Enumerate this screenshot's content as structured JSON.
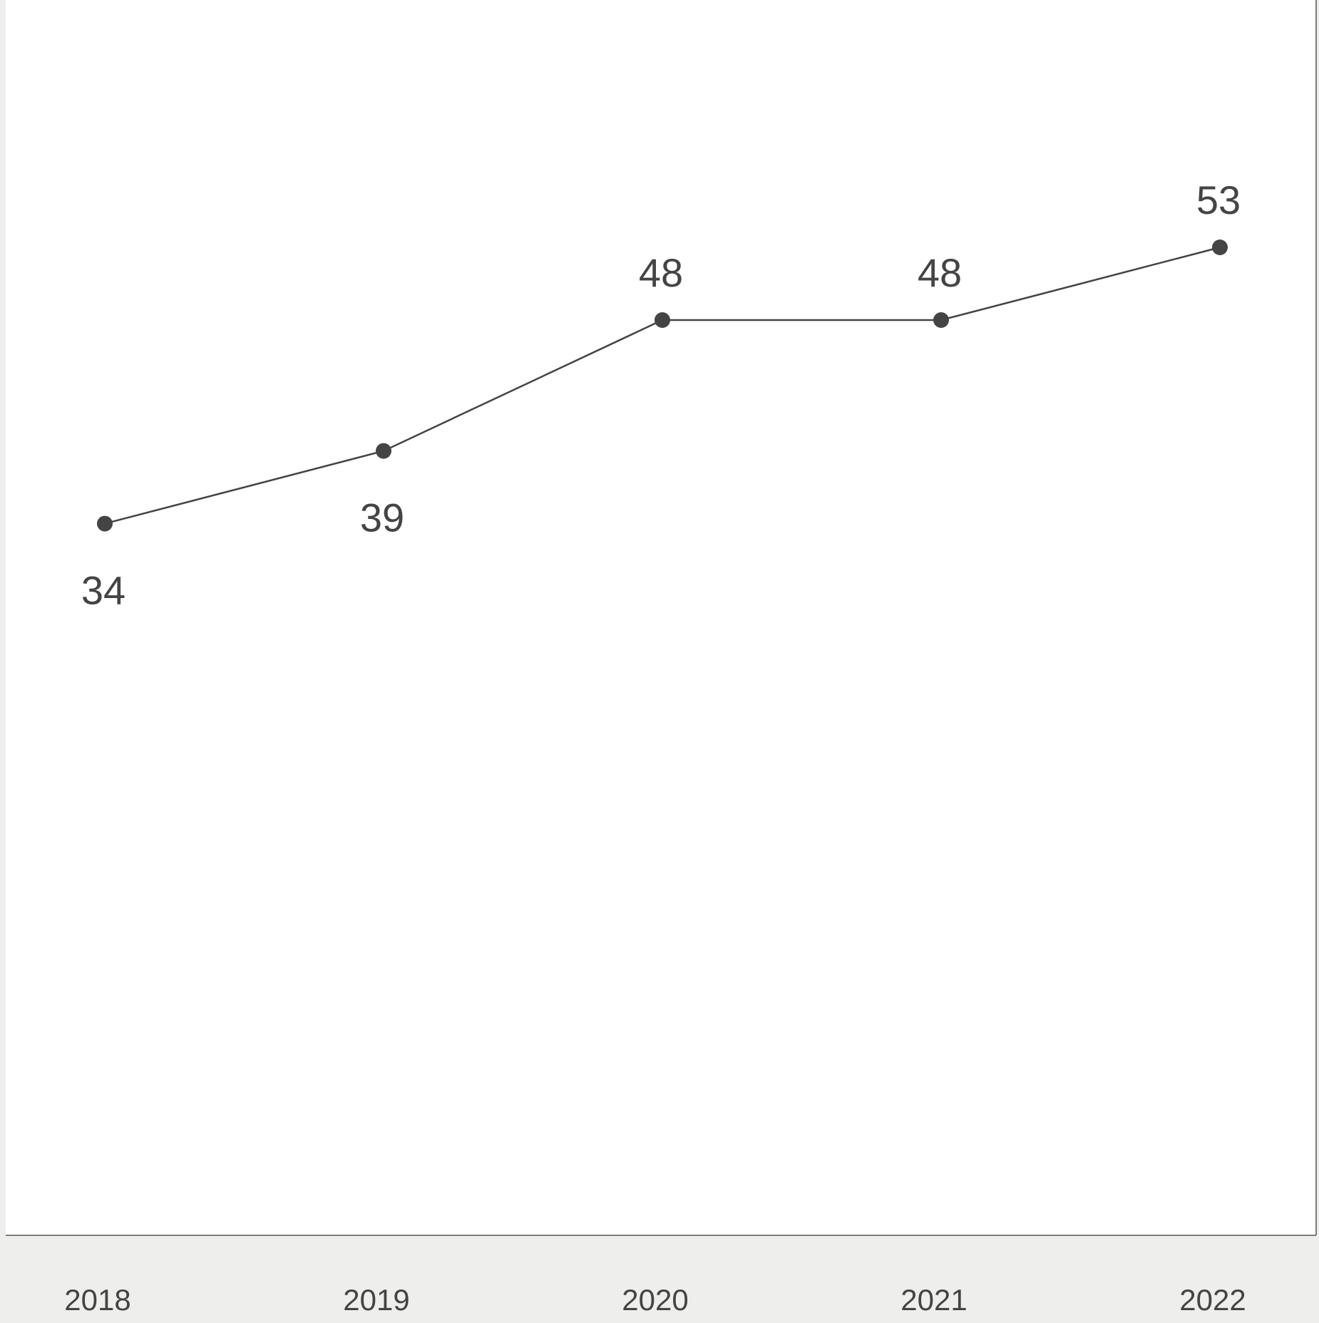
{
  "chart_data": {
    "type": "line",
    "categories": [
      "2018",
      "2019",
      "2020",
      "2021",
      "2022"
    ],
    "series": [
      {
        "values": [
          34,
          39,
          48,
          48,
          53
        ]
      }
    ],
    "data_labels": [
      "34",
      "39",
      "48",
      "48",
      "53"
    ],
    "grid": false,
    "legend": "none",
    "colors": {
      "line": "#444444",
      "plot_background": "#ffffff",
      "axis_band": "#eeeeec"
    }
  }
}
